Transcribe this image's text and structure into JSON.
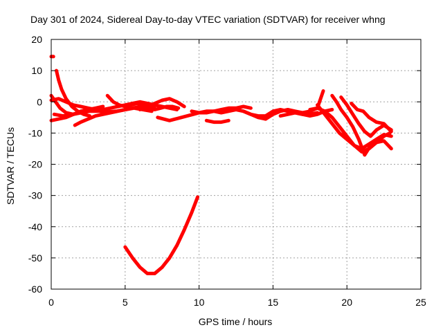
{
  "chart_data": {
    "type": "line",
    "title": "Day 301 of 2024, Sidereal Day-to-day VTEC variation (SDTVAR) for receiver whng",
    "xlabel": "GPS time / hours",
    "ylabel": "SDTVAR / TECUs",
    "xlim": [
      0,
      25
    ],
    "ylim": [
      -60,
      20
    ],
    "xticks": [
      0,
      5,
      10,
      15,
      20,
      25
    ],
    "yticks": [
      20,
      10,
      0,
      -10,
      -20,
      -30,
      -40,
      -50,
      -60
    ],
    "xtick_labels": [
      "0",
      "5",
      "10",
      "15",
      "20",
      "25"
    ],
    "ytick_labels": [
      "20",
      "10",
      "0",
      "-10",
      "-20",
      "-30",
      "-40",
      "-50",
      "-60"
    ],
    "grid": true,
    "color": "#ff0000",
    "series": [
      {
        "name": "arc-1",
        "x": [
          0.0,
          0.15
        ],
        "y": [
          14.5,
          14.5
        ]
      },
      {
        "name": "arc-2",
        "x": [
          0.35,
          0.5,
          0.7,
          1.0,
          1.4,
          1.8,
          2.2,
          2.6
        ],
        "y": [
          10.0,
          7.0,
          4.0,
          1.0,
          -1.5,
          -3.0,
          -4.0,
          -4.5
        ]
      },
      {
        "name": "arc-3",
        "x": [
          0.0,
          0.3,
          0.6,
          1.0,
          1.5,
          2.0,
          2.5,
          3.0
        ],
        "y": [
          2.0,
          0.0,
          -2.0,
          -3.5,
          -4.0,
          -3.5,
          -3.0,
          -2.5
        ]
      },
      {
        "name": "arc-4",
        "x": [
          0.0,
          0.5,
          1.0,
          1.5,
          2.0,
          2.5,
          3.0,
          3.5
        ],
        "y": [
          -6.0,
          -5.5,
          -5.0,
          -4.0,
          -3.0,
          -2.5,
          -2.0,
          -1.5
        ]
      },
      {
        "name": "arc-5",
        "x": [
          0.0,
          0.5,
          1.0,
          1.5,
          2.0,
          2.5,
          3.0,
          3.5,
          4.0,
          4.5,
          5.0
        ],
        "y": [
          0.5,
          1.0,
          0.0,
          -1.0,
          -1.5,
          -2.0,
          -2.5,
          -2.5,
          -2.0,
          -1.5,
          -1.0
        ]
      },
      {
        "name": "arc-6",
        "x": [
          0.2,
          0.8,
          1.4,
          2.0,
          2.6,
          3.2,
          3.8,
          4.4,
          5.0,
          5.6,
          6.2,
          6.8
        ],
        "y": [
          -4.0,
          -4.5,
          -4.0,
          -3.5,
          -3.0,
          -3.0,
          -3.2,
          -3.0,
          -2.5,
          -2.0,
          -2.5,
          -3.0
        ]
      },
      {
        "name": "arc-7",
        "x": [
          1.6,
          2.0,
          2.5,
          3.0,
          3.5,
          4.0,
          4.5,
          5.0,
          5.5,
          6.0,
          6.5,
          7.0
        ],
        "y": [
          -7.5,
          -6.5,
          -5.5,
          -4.5,
          -4.0,
          -3.5,
          -3.0,
          -2.5,
          -2.0,
          -1.5,
          -1.5,
          -2.0
        ]
      },
      {
        "name": "arc-8",
        "x": [
          3.8,
          4.2,
          4.6,
          5.0,
          5.4,
          5.8,
          6.2,
          6.6,
          7.0,
          7.4,
          7.8,
          8.2,
          8.6
        ],
        "y": [
          2.0,
          0.0,
          -1.0,
          -1.5,
          -1.0,
          -0.5,
          -1.0,
          -2.0,
          -2.5,
          -2.0,
          -1.5,
          -1.5,
          -2.0
        ]
      },
      {
        "name": "arc-9",
        "x": [
          5.0,
          5.5,
          6.0,
          6.5,
          7.0,
          7.5,
          8.0,
          8.5
        ],
        "y": [
          -1.0,
          -0.5,
          0.0,
          -0.5,
          -1.0,
          -1.5,
          -2.0,
          -2.5
        ]
      },
      {
        "name": "arc-10",
        "x": [
          6.0,
          6.5,
          7.0,
          7.5,
          8.0,
          8.5,
          9.0
        ],
        "y": [
          -2.5,
          -1.5,
          -0.5,
          0.5,
          1.0,
          0.0,
          -1.5
        ]
      },
      {
        "name": "arc-11",
        "x": [
          7.2,
          7.6,
          8.0,
          8.4,
          8.8,
          9.2,
          9.6,
          10.0,
          10.5,
          11.0,
          11.5,
          12.0,
          12.5,
          13.0,
          13.5,
          14.0,
          14.5
        ],
        "y": [
          -5.0,
          -5.5,
          -6.0,
          -5.5,
          -5.0,
          -4.5,
          -4.0,
          -3.5,
          -3.5,
          -3.0,
          -3.5,
          -3.0,
          -2.5,
          -3.0,
          -4.0,
          -5.0,
          -5.5
        ]
      },
      {
        "name": "arc-12",
        "x": [
          9.5,
          10.0,
          10.5,
          11.0,
          11.5,
          12.0,
          12.5,
          13.0,
          13.5
        ],
        "y": [
          -3.0,
          -3.5,
          -3.0,
          -3.0,
          -2.5,
          -2.0,
          -2.0,
          -1.5,
          -2.0
        ]
      },
      {
        "name": "arc-13",
        "x": [
          10.5,
          11.0,
          11.5,
          12.0
        ],
        "y": [
          -6.0,
          -6.5,
          -6.5,
          -6.0
        ]
      },
      {
        "name": "arc-14",
        "x": [
          13.0,
          13.5,
          14.0,
          14.5,
          15.0,
          15.5,
          16.0,
          16.5,
          17.0,
          17.5,
          18.0
        ],
        "y": [
          -3.0,
          -4.0,
          -4.5,
          -4.5,
          -3.0,
          -2.5,
          -3.0,
          -3.5,
          -4.0,
          -4.0,
          -3.5
        ]
      },
      {
        "name": "arc-15",
        "x": [
          14.5,
          15.0,
          15.5,
          16.0,
          16.5,
          17.0,
          17.5,
          18.0,
          18.4
        ],
        "y": [
          -5.5,
          -4.0,
          -3.0,
          -2.5,
          -3.0,
          -3.5,
          -3.0,
          -2.0,
          3.5
        ]
      },
      {
        "name": "arc-16",
        "x": [
          15.5,
          16.0,
          16.5,
          17.0,
          17.5,
          18.0,
          18.5,
          19.0
        ],
        "y": [
          -4.5,
          -4.0,
          -3.5,
          -4.0,
          -4.5,
          -4.0,
          -3.0,
          -2.5
        ]
      },
      {
        "name": "arc-17",
        "x": [
          17.5,
          18.0,
          18.5,
          19.0,
          19.5,
          20.0,
          20.5,
          21.0,
          21.5,
          22.0,
          22.5,
          22.9
        ],
        "y": [
          -2.5,
          -2.0,
          -3.0,
          -5.0,
          -8.0,
          -11.0,
          -14.0,
          -16.0,
          -15.0,
          -13.0,
          -11.0,
          -10.0
        ]
      },
      {
        "name": "arc-18",
        "x": [
          18.0,
          18.5,
          19.0,
          19.5,
          20.0,
          20.5,
          21.0,
          21.5,
          22.0,
          22.5,
          23.0
        ],
        "y": [
          -1.0,
          -4.0,
          -7.0,
          -10.0,
          -12.0,
          -14.0,
          -15.0,
          -13.5,
          -12.0,
          -10.5,
          -11.0
        ]
      },
      {
        "name": "arc-19",
        "x": [
          19.0,
          19.3,
          19.6,
          20.0,
          20.4,
          20.8,
          21.2,
          21.6,
          22.0,
          22.5,
          23.0
        ],
        "y": [
          2.0,
          0.0,
          -2.5,
          -5.0,
          -8.0,
          -12.0,
          -17.0,
          -14.0,
          -13.0,
          -12.5,
          -15.0
        ]
      },
      {
        "name": "arc-20",
        "x": [
          19.6,
          20.0,
          20.4,
          20.8,
          21.2,
          21.6,
          22.0,
          22.5,
          23.0
        ],
        "y": [
          1.5,
          -1.0,
          -4.0,
          -7.0,
          -9.5,
          -11.0,
          -9.0,
          -7.5,
          -9.0
        ]
      },
      {
        "name": "arc-21",
        "x": [
          20.3,
          20.7,
          21.1,
          21.5,
          22.0,
          22.5,
          23.0
        ],
        "y": [
          -0.5,
          -2.5,
          -3.0,
          -5.0,
          -6.5,
          -7.0,
          -9.5
        ]
      },
      {
        "name": "arc-22",
        "x": [
          5.0,
          5.5,
          6.0,
          6.5,
          7.0,
          7.5,
          8.0,
          8.5,
          9.0,
          9.5,
          9.9
        ],
        "y": [
          -46.5,
          -50.0,
          -53.0,
          -55.0,
          -55.0,
          -53.0,
          -50.0,
          -46.0,
          -41.0,
          -35.5,
          -30.5
        ]
      }
    ]
  }
}
